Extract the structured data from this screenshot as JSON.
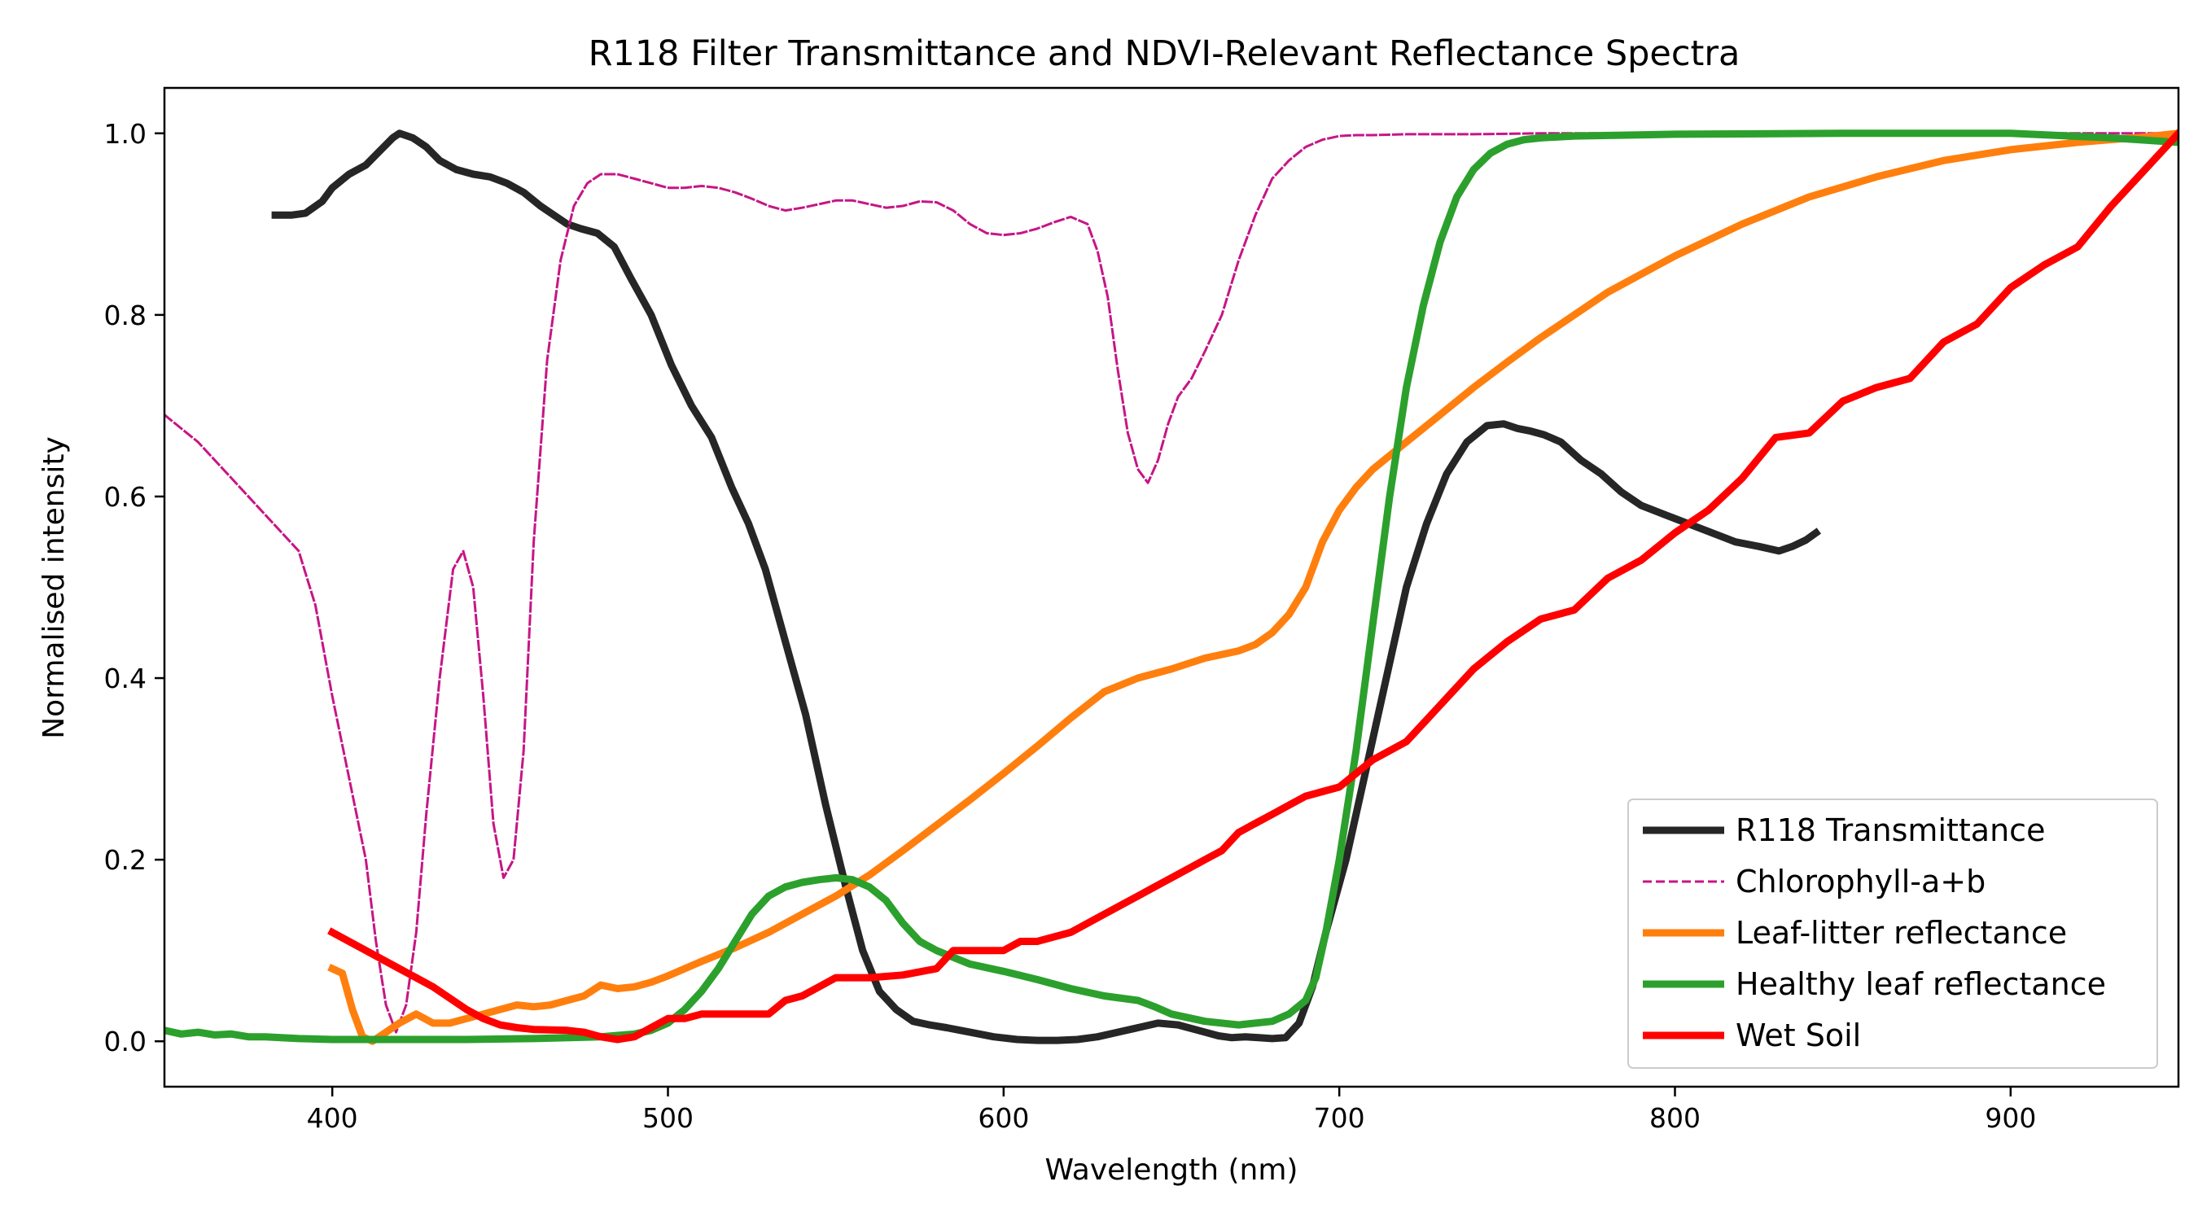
{
  "chart_data": {
    "type": "line",
    "title": "R118 Filter Transmittance and NDVI-Relevant Reflectance Spectra",
    "xlabel": "Wavelength (nm)",
    "ylabel": "Normalised intensity",
    "xlim": [
      350,
      950
    ],
    "ylim": [
      -0.05,
      1.05
    ],
    "x_ticks": [
      400,
      500,
      600,
      700,
      800,
      900
    ],
    "y_ticks": [
      0.0,
      0.2,
      0.4,
      0.6,
      0.8,
      1.0
    ],
    "x_tick_labels": [
      "400",
      "500",
      "600",
      "700",
      "800",
      "900"
    ],
    "y_tick_labels": [
      "0.0",
      "0.2",
      "0.4",
      "0.6",
      "0.8",
      "1.0"
    ],
    "grid": false,
    "legend_position": "lower-right",
    "series": [
      {
        "name": "R118 Transmittance",
        "color": "#262626",
        "style": "solid",
        "width": "thick",
        "x": [
          383,
          388,
          392,
          397,
          400,
          405,
          410,
          414,
          418,
          420,
          424,
          428,
          432,
          437,
          442,
          447,
          452,
          457,
          462,
          466,
          470,
          474,
          479,
          484,
          489,
          495,
          501,
          507,
          513,
          519,
          524,
          529,
          535,
          541,
          547,
          553,
          558,
          563,
          568,
          573,
          578,
          583,
          590,
          597,
          604,
          610,
          616,
          622,
          628,
          634,
          640,
          646,
          652,
          658,
          664,
          668,
          672,
          676,
          680,
          684,
          688,
          692,
          696,
          702,
          708,
          714,
          720,
          726,
          732,
          738,
          744,
          749,
          753,
          757,
          761,
          766,
          772,
          778,
          784,
          790,
          797,
          804,
          811,
          818,
          825,
          831,
          835,
          839,
          842
        ],
        "y": [
          0.91,
          0.91,
          0.912,
          0.925,
          0.94,
          0.955,
          0.965,
          0.98,
          0.995,
          1.0,
          0.995,
          0.985,
          0.97,
          0.96,
          0.955,
          0.952,
          0.945,
          0.935,
          0.92,
          0.91,
          0.9,
          0.895,
          0.89,
          0.875,
          0.84,
          0.8,
          0.745,
          0.7,
          0.665,
          0.61,
          0.57,
          0.52,
          0.44,
          0.36,
          0.26,
          0.17,
          0.1,
          0.055,
          0.035,
          0.022,
          0.018,
          0.015,
          0.01,
          0.005,
          0.002,
          0.001,
          0.001,
          0.002,
          0.005,
          0.01,
          0.015,
          0.02,
          0.018,
          0.012,
          0.006,
          0.004,
          0.005,
          0.004,
          0.003,
          0.004,
          0.02,
          0.06,
          0.12,
          0.2,
          0.3,
          0.4,
          0.5,
          0.57,
          0.625,
          0.66,
          0.678,
          0.68,
          0.675,
          0.672,
          0.668,
          0.66,
          0.64,
          0.625,
          0.605,
          0.59,
          0.58,
          0.57,
          0.56,
          0.55,
          0.545,
          0.54,
          0.545,
          0.552,
          0.56
        ]
      },
      {
        "name": "Chlorophyll-a+b",
        "color": "#c71585",
        "style": "dashed",
        "width": "thin",
        "x": [
          350,
          360,
          370,
          380,
          390,
          395,
          400,
          405,
          410,
          413,
          416,
          419,
          422,
          425,
          428,
          432,
          436,
          439,
          442,
          445,
          448,
          451,
          454,
          457,
          460,
          464,
          468,
          472,
          476,
          480,
          485,
          490,
          495,
          500,
          505,
          510,
          515,
          520,
          525,
          530,
          535,
          540,
          545,
          550,
          555,
          560,
          565,
          570,
          575,
          580,
          585,
          590,
          595,
          600,
          605,
          610,
          615,
          620,
          625,
          628,
          631,
          634,
          637,
          640,
          643,
          646,
          649,
          652,
          656,
          660,
          665,
          670,
          675,
          680,
          685,
          690,
          695,
          700,
          705,
          710,
          720,
          740,
          760,
          800,
          850,
          900,
          950
        ],
        "y": [
          0.69,
          0.66,
          0.62,
          0.58,
          0.54,
          0.48,
          0.38,
          0.29,
          0.2,
          0.11,
          0.04,
          0.01,
          0.04,
          0.12,
          0.25,
          0.4,
          0.52,
          0.54,
          0.5,
          0.38,
          0.24,
          0.18,
          0.2,
          0.32,
          0.55,
          0.75,
          0.86,
          0.92,
          0.945,
          0.955,
          0.955,
          0.95,
          0.945,
          0.94,
          0.94,
          0.942,
          0.94,
          0.935,
          0.928,
          0.92,
          0.915,
          0.918,
          0.922,
          0.926,
          0.926,
          0.922,
          0.918,
          0.92,
          0.925,
          0.924,
          0.915,
          0.9,
          0.89,
          0.888,
          0.89,
          0.895,
          0.902,
          0.908,
          0.9,
          0.87,
          0.82,
          0.74,
          0.67,
          0.63,
          0.615,
          0.64,
          0.68,
          0.71,
          0.73,
          0.76,
          0.8,
          0.86,
          0.91,
          0.95,
          0.97,
          0.985,
          0.993,
          0.997,
          0.998,
          0.998,
          0.999,
          0.999,
          1.0,
          1.0,
          1.0,
          1.0,
          1.0
        ]
      },
      {
        "name": "Leaf-litter reflectance",
        "color": "#ff7f0e",
        "style": "solid",
        "width": "thick",
        "x": [
          400,
          403,
          406,
          409,
          412,
          416,
          420,
          425,
          430,
          435,
          440,
          445,
          450,
          455,
          460,
          465,
          470,
          475,
          480,
          485,
          490,
          495,
          500,
          510,
          520,
          530,
          540,
          550,
          560,
          570,
          580,
          590,
          600,
          610,
          620,
          630,
          640,
          650,
          660,
          670,
          675,
          680,
          685,
          690,
          695,
          700,
          705,
          710,
          720,
          730,
          740,
          750,
          760,
          780,
          800,
          820,
          840,
          860,
          880,
          900,
          920,
          940,
          950
        ],
        "y": [
          0.08,
          0.075,
          0.035,
          0.005,
          0.0,
          0.01,
          0.02,
          0.03,
          0.02,
          0.02,
          0.025,
          0.03,
          0.035,
          0.04,
          0.038,
          0.04,
          0.045,
          0.05,
          0.062,
          0.058,
          0.06,
          0.065,
          0.072,
          0.088,
          0.103,
          0.12,
          0.14,
          0.16,
          0.183,
          0.21,
          0.238,
          0.266,
          0.295,
          0.325,
          0.356,
          0.385,
          0.4,
          0.41,
          0.422,
          0.43,
          0.437,
          0.45,
          0.47,
          0.5,
          0.55,
          0.585,
          0.61,
          0.63,
          0.66,
          0.69,
          0.72,
          0.748,
          0.775,
          0.825,
          0.865,
          0.9,
          0.93,
          0.952,
          0.97,
          0.982,
          0.99,
          0.996,
          1.0
        ]
      },
      {
        "name": "Healthy leaf reflectance",
        "color": "#2ca02c",
        "style": "solid",
        "width": "thick",
        "x": [
          350,
          355,
          360,
          365,
          370,
          375,
          380,
          390,
          400,
          420,
          440,
          460,
          480,
          490,
          495,
          500,
          505,
          510,
          515,
          520,
          525,
          530,
          535,
          540,
          545,
          550,
          555,
          560,
          565,
          570,
          575,
          580,
          590,
          600,
          610,
          620,
          630,
          640,
          645,
          650,
          660,
          670,
          680,
          685,
          690,
          693,
          696,
          700,
          705,
          710,
          715,
          720,
          725,
          730,
          735,
          740,
          745,
          750,
          755,
          760,
          770,
          800,
          850,
          900,
          930,
          950
        ],
        "y": [
          0.012,
          0.008,
          0.01,
          0.007,
          0.008,
          0.005,
          0.005,
          0.003,
          0.002,
          0.002,
          0.002,
          0.003,
          0.005,
          0.008,
          0.012,
          0.02,
          0.035,
          0.055,
          0.08,
          0.11,
          0.14,
          0.16,
          0.17,
          0.175,
          0.178,
          0.18,
          0.178,
          0.17,
          0.155,
          0.13,
          0.11,
          0.1,
          0.085,
          0.077,
          0.068,
          0.058,
          0.05,
          0.045,
          0.038,
          0.03,
          0.022,
          0.018,
          0.022,
          0.03,
          0.045,
          0.07,
          0.12,
          0.2,
          0.32,
          0.46,
          0.6,
          0.72,
          0.81,
          0.88,
          0.93,
          0.96,
          0.978,
          0.988,
          0.993,
          0.995,
          0.997,
          0.999,
          1.0,
          1.0,
          0.995,
          0.99
        ]
      },
      {
        "name": "Wet Soil",
        "color": "#ff0000",
        "style": "solid",
        "width": "thick",
        "x": [
          400,
          410,
          420,
          430,
          440,
          445,
          450,
          455,
          460,
          470,
          475,
          480,
          485,
          490,
          495,
          500,
          505,
          510,
          520,
          530,
          535,
          540,
          545,
          550,
          560,
          570,
          580,
          585,
          600,
          605,
          610,
          620,
          630,
          635,
          640,
          645,
          650,
          655,
          660,
          665,
          670,
          675,
          680,
          685,
          690,
          695,
          700,
          710,
          720,
          730,
          740,
          750,
          760,
          770,
          780,
          790,
          800,
          810,
          820,
          830,
          840,
          850,
          860,
          870,
          880,
          890,
          900,
          910,
          920,
          930,
          940,
          950
        ],
        "y": [
          0.12,
          0.1,
          0.08,
          0.06,
          0.035,
          0.025,
          0.018,
          0.015,
          0.013,
          0.012,
          0.01,
          0.005,
          0.002,
          0.005,
          0.015,
          0.025,
          0.025,
          0.03,
          0.03,
          0.03,
          0.045,
          0.05,
          0.06,
          0.07,
          0.07,
          0.073,
          0.08,
          0.1,
          0.1,
          0.11,
          0.11,
          0.12,
          0.14,
          0.15,
          0.16,
          0.17,
          0.18,
          0.19,
          0.2,
          0.21,
          0.23,
          0.24,
          0.25,
          0.26,
          0.27,
          0.275,
          0.28,
          0.31,
          0.33,
          0.37,
          0.41,
          0.44,
          0.465,
          0.475,
          0.51,
          0.53,
          0.56,
          0.585,
          0.62,
          0.665,
          0.67,
          0.705,
          0.72,
          0.73,
          0.77,
          0.79,
          0.83,
          0.855,
          0.875,
          0.92,
          0.96,
          1.0
        ]
      }
    ]
  }
}
